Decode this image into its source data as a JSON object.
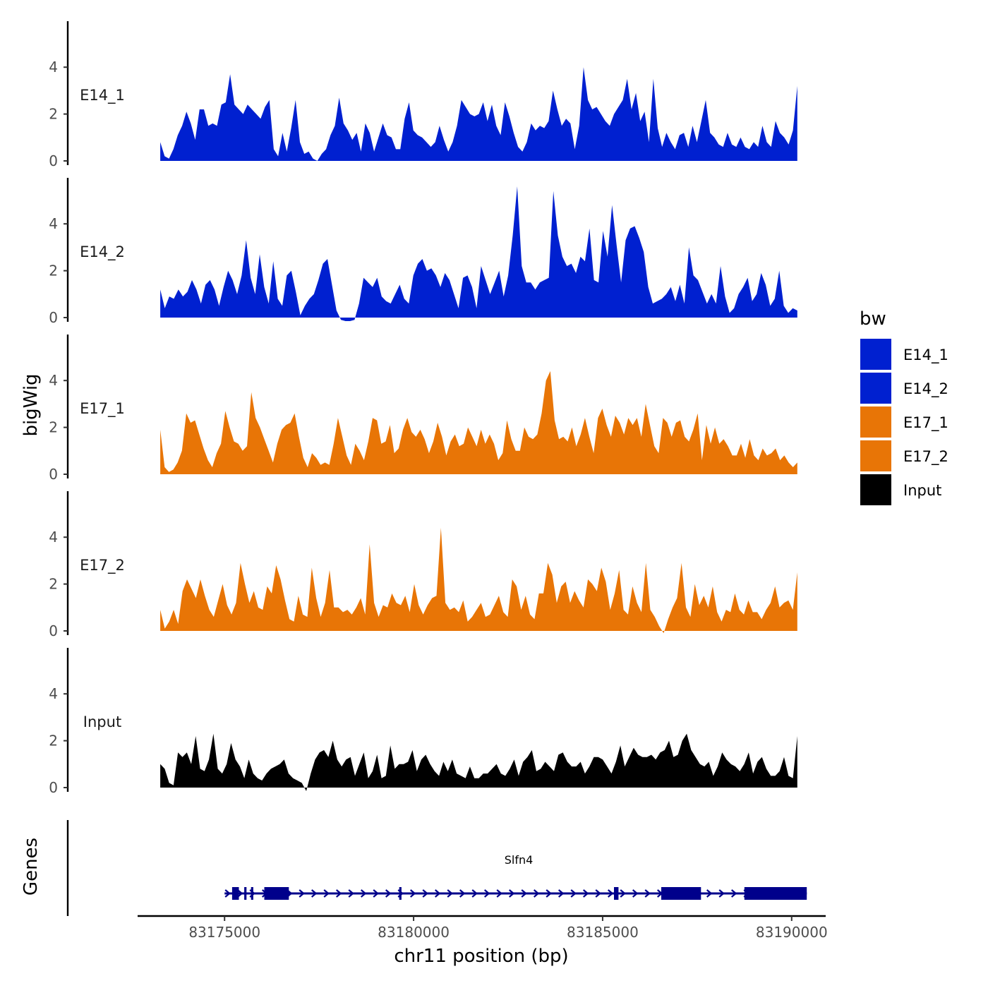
{
  "chart_data": {
    "type": "area",
    "xlabel": "chr11 position (bp)",
    "ylabel": "bigWig",
    "genes_label": "Genes",
    "xlim": [
      83172700,
      83190900
    ],
    "x_start": 83173300,
    "x_end": 83190150,
    "x_ticks": [
      83175000,
      83180000,
      83185000,
      83190000
    ],
    "x_tick_labels": [
      "83175000",
      "83180000",
      "83185000",
      "83190000"
    ],
    "ylim": [
      0,
      6
    ],
    "y_ticks": [
      0,
      2,
      4
    ],
    "y_tick_labels": [
      "0",
      "2",
      "4"
    ],
    "colors": {
      "E14": "#0020D0",
      "E17": "#E87506",
      "Input": "#000000",
      "gene": "#00008B"
    },
    "tracks": [
      {
        "name": "E14_1",
        "color": "#0020D0",
        "values": [
          0.8,
          0.2,
          0.1,
          0.5,
          1.1,
          1.5,
          2.1,
          1.6,
          0.9,
          2.2,
          2.2,
          1.5,
          1.6,
          1.5,
          2.4,
          2.5,
          3.7,
          2.4,
          2.2,
          2.0,
          2.4,
          2.2,
          2.0,
          1.8,
          2.3,
          2.6,
          0.5,
          0.2,
          1.2,
          0.4,
          1.4,
          2.6,
          0.8,
          0.3,
          0.4,
          0.1,
          0.0,
          0.3,
          0.5,
          1.1,
          1.5,
          2.7,
          1.6,
          1.3,
          0.9,
          1.2,
          0.4,
          1.6,
          1.2,
          0.4,
          1.0,
          1.6,
          1.1,
          1.0,
          0.5,
          0.5,
          1.8,
          2.5,
          1.3,
          1.1,
          1.0,
          0.8,
          0.6,
          0.8,
          1.5,
          0.9,
          0.4,
          0.8,
          1.5,
          2.6,
          2.3,
          2.0,
          1.9,
          2.0,
          2.5,
          1.7,
          2.4,
          1.5,
          1.1,
          2.5,
          1.9,
          1.2,
          0.6,
          0.4,
          0.8,
          1.6,
          1.3,
          1.5,
          1.4,
          1.7,
          3.0,
          2.2,
          1.5,
          1.8,
          1.6,
          0.5,
          1.5,
          4.0,
          2.6,
          2.2,
          2.3,
          2.0,
          1.7,
          1.5,
          2.0,
          2.3,
          2.6,
          3.5,
          2.2,
          2.9,
          1.7,
          2.1,
          0.8,
          3.5,
          1.4,
          0.6,
          1.2,
          0.8,
          0.5,
          1.1,
          1.2,
          0.6,
          1.5,
          0.8,
          1.7,
          2.6,
          1.2,
          1.0,
          0.7,
          0.6,
          1.2,
          0.7,
          0.6,
          1.0,
          0.6,
          0.5,
          0.8,
          0.6,
          1.5,
          0.8,
          0.6,
          1.7,
          1.2,
          1.0,
          0.7,
          1.3,
          3.2
        ]
      },
      {
        "name": "E14_2",
        "color": "#0020D0",
        "values": [
          1.2,
          0.4,
          0.9,
          0.8,
          1.2,
          0.9,
          1.1,
          1.6,
          1.2,
          0.6,
          1.4,
          1.6,
          1.2,
          0.5,
          1.3,
          2.0,
          1.6,
          1.0,
          1.8,
          3.3,
          1.7,
          1.0,
          2.7,
          1.3,
          0.6,
          2.4,
          0.8,
          0.5,
          1.8,
          2.0,
          1.1,
          0.1,
          0.5,
          0.8,
          1.0,
          1.6,
          2.3,
          2.5,
          1.4,
          0.3,
          -0.1,
          -0.2,
          -0.2,
          -0.1,
          0.6,
          1.7,
          1.5,
          1.3,
          1.7,
          0.9,
          0.7,
          0.6,
          1.0,
          1.4,
          0.8,
          0.6,
          1.8,
          2.3,
          2.5,
          2.0,
          2.1,
          1.8,
          1.3,
          1.9,
          1.6,
          1.0,
          0.4,
          1.7,
          1.8,
          1.3,
          0.4,
          2.2,
          1.6,
          1.0,
          1.5,
          2.0,
          0.9,
          1.8,
          3.5,
          5.6,
          2.2,
          1.5,
          1.5,
          1.2,
          1.5,
          1.6,
          1.7,
          5.4,
          3.5,
          2.6,
          2.2,
          2.3,
          1.9,
          2.6,
          2.4,
          3.8,
          1.6,
          1.5,
          3.7,
          2.6,
          4.8,
          3.1,
          1.5,
          3.3,
          3.8,
          3.9,
          3.4,
          2.8,
          1.3,
          0.6,
          0.7,
          0.8,
          1.0,
          1.3,
          0.7,
          1.4,
          0.6,
          3.0,
          1.8,
          1.6,
          1.1,
          0.6,
          1.0,
          0.6,
          2.2,
          0.9,
          0.2,
          0.4,
          1.0,
          1.3,
          1.7,
          0.7,
          1.0,
          1.9,
          1.4,
          0.5,
          0.8,
          2.0,
          0.5,
          0.2,
          0.4,
          0.3
        ]
      },
      {
        "name": "E17_1",
        "color": "#E87506",
        "values": [
          1.9,
          0.3,
          0.1,
          0.2,
          0.5,
          1.0,
          2.6,
          2.2,
          2.3,
          1.7,
          1.1,
          0.6,
          0.3,
          0.9,
          1.3,
          2.7,
          2.0,
          1.4,
          1.3,
          1.0,
          1.2,
          3.5,
          2.4,
          2.0,
          1.5,
          1.0,
          0.5,
          1.3,
          1.9,
          2.1,
          2.2,
          2.6,
          1.6,
          0.7,
          0.3,
          0.9,
          0.7,
          0.4,
          0.5,
          0.4,
          1.3,
          2.4,
          1.6,
          0.8,
          0.4,
          1.3,
          1.0,
          0.6,
          1.4,
          2.4,
          2.3,
          1.3,
          1.4,
          2.1,
          0.9,
          1.1,
          1.9,
          2.4,
          1.8,
          1.6,
          1.9,
          1.5,
          0.9,
          1.4,
          2.2,
          1.6,
          0.8,
          1.4,
          1.7,
          1.2,
          1.3,
          2.0,
          1.6,
          1.2,
          1.9,
          1.3,
          1.7,
          1.3,
          0.6,
          0.9,
          2.3,
          1.5,
          1.0,
          1.0,
          2.0,
          1.6,
          1.5,
          1.7,
          2.6,
          4.0,
          4.4,
          2.3,
          1.5,
          1.6,
          1.4,
          2.0,
          1.2,
          1.7,
          2.4,
          1.6,
          0.9,
          2.4,
          2.8,
          2.1,
          1.6,
          2.5,
          2.2,
          1.7,
          2.4,
          2.1,
          2.4,
          1.6,
          3.0,
          2.1,
          1.2,
          0.9,
          2.4,
          2.2,
          1.6,
          2.2,
          2.3,
          1.6,
          1.4,
          1.9,
          2.6,
          0.6,
          2.1,
          1.3,
          2.0,
          1.3,
          1.5,
          1.2,
          0.8,
          0.8,
          1.3,
          0.7,
          1.5,
          0.8,
          0.6,
          1.1,
          0.8,
          0.9,
          1.1,
          0.6,
          0.8,
          0.5,
          0.3,
          0.5
        ]
      },
      {
        "name": "E17_2",
        "color": "#E87506",
        "values": [
          0.9,
          0.1,
          0.4,
          0.9,
          0.3,
          1.7,
          2.2,
          1.8,
          1.4,
          2.2,
          1.5,
          0.9,
          0.6,
          1.3,
          2.0,
          1.1,
          0.7,
          1.2,
          2.9,
          2.0,
          1.2,
          1.7,
          1.0,
          0.9,
          1.9,
          1.6,
          2.8,
          2.2,
          1.3,
          0.5,
          0.4,
          1.5,
          0.7,
          0.6,
          2.7,
          1.4,
          0.6,
          1.2,
          2.6,
          1.0,
          1.0,
          0.8,
          0.9,
          0.7,
          1.0,
          1.4,
          0.7,
          3.7,
          1.2,
          0.6,
          1.1,
          1.0,
          1.6,
          1.2,
          1.1,
          1.5,
          0.8,
          2.0,
          1.1,
          0.7,
          1.1,
          1.4,
          1.5,
          4.4,
          1.2,
          0.9,
          1.0,
          0.8,
          1.3,
          0.4,
          0.6,
          0.9,
          1.2,
          0.6,
          0.7,
          1.1,
          1.5,
          0.8,
          0.6,
          2.2,
          1.9,
          0.9,
          1.5,
          0.7,
          0.5,
          1.6,
          1.6,
          2.9,
          2.4,
          1.2,
          1.9,
          2.1,
          1.2,
          1.7,
          1.3,
          1.0,
          2.2,
          2.0,
          1.7,
          2.7,
          2.1,
          0.9,
          1.6,
          2.6,
          0.9,
          0.7,
          1.9,
          1.2,
          0.8,
          2.9,
          0.9,
          0.6,
          0.2,
          -0.1,
          0.5,
          1.0,
          1.4,
          2.9,
          1.0,
          0.6,
          2.0,
          1.1,
          1.5,
          1.0,
          1.9,
          0.8,
          0.4,
          0.9,
          0.8,
          1.6,
          0.9,
          0.7,
          1.3,
          0.8,
          0.8,
          0.5,
          0.9,
          1.2,
          1.9,
          1.0,
          1.2,
          1.3,
          0.9,
          2.5
        ]
      },
      {
        "name": "Input",
        "color": "#000000",
        "values": [
          1.0,
          0.8,
          0.2,
          0.1,
          1.5,
          1.3,
          1.5,
          1.0,
          2.2,
          0.8,
          0.7,
          1.2,
          2.3,
          0.8,
          0.6,
          1.0,
          1.9,
          1.2,
          0.9,
          0.4,
          1.2,
          0.6,
          0.4,
          0.3,
          0.6,
          0.8,
          0.9,
          1.0,
          1.2,
          0.6,
          0.4,
          0.3,
          0.2,
          -0.2,
          0.6,
          1.2,
          1.5,
          1.6,
          1.3,
          2.0,
          1.2,
          0.9,
          1.2,
          1.3,
          0.5,
          1.0,
          1.5,
          0.4,
          0.7,
          1.4,
          0.4,
          0.5,
          1.8,
          0.8,
          1.0,
          1.0,
          1.1,
          1.6,
          0.7,
          1.2,
          1.4,
          1.0,
          0.7,
          0.5,
          1.1,
          0.7,
          1.2,
          0.6,
          0.5,
          0.4,
          0.9,
          0.4,
          0.4,
          0.6,
          0.6,
          0.8,
          1.0,
          0.6,
          0.5,
          0.8,
          1.2,
          0.5,
          1.1,
          1.3,
          1.6,
          0.7,
          0.8,
          1.1,
          0.9,
          0.7,
          1.4,
          1.5,
          1.1,
          0.9,
          0.9,
          1.1,
          0.6,
          0.9,
          1.3,
          1.3,
          1.2,
          0.9,
          0.6,
          1.1,
          1.8,
          0.9,
          1.3,
          1.7,
          1.4,
          1.3,
          1.3,
          1.4,
          1.2,
          1.5,
          1.6,
          2.0,
          1.3,
          1.4,
          2.0,
          2.3,
          1.6,
          1.3,
          1.0,
          0.9,
          1.1,
          0.5,
          0.9,
          1.5,
          1.2,
          1.0,
          0.9,
          0.7,
          1.0,
          1.5,
          0.6,
          1.1,
          1.3,
          0.8,
          0.5,
          0.5,
          0.7,
          1.3,
          0.5,
          0.4,
          2.2
        ]
      }
    ],
    "legend": {
      "title": "bw",
      "position": "right",
      "entries": [
        {
          "label": "E14_1",
          "color": "#0020D0"
        },
        {
          "label": "E14_2",
          "color": "#0020D0"
        },
        {
          "label": "E17_1",
          "color": "#E87506"
        },
        {
          "label": "E17_2",
          "color": "#E87506"
        },
        {
          "label": "Input",
          "color": "#000000"
        }
      ]
    },
    "gene": {
      "name": "Slfn4",
      "strand": "+",
      "start": 83175000,
      "end": 83190400,
      "exons": [
        [
          83175200,
          83175380
        ],
        [
          83175520,
          83175580
        ],
        [
          83175700,
          83175760
        ],
        [
          83176050,
          83176700
        ],
        [
          83179620,
          83179680
        ],
        [
          83185300,
          83185420
        ],
        [
          83186550,
          83187600
        ],
        [
          83188750,
          83190400
        ]
      ]
    }
  }
}
